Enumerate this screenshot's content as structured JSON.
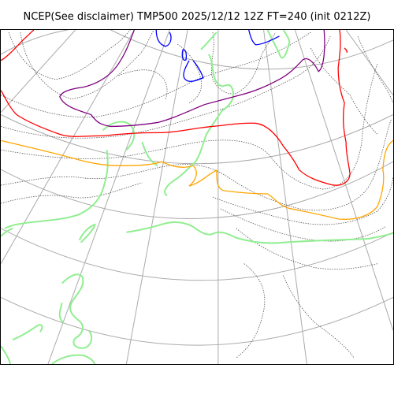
{
  "map": {
    "title": "NCEP(See disclaimer) TMP500 2025/12/12 12Z FT=240 (init 0212Z)",
    "colors": {
      "graticule": "#aaaaaa",
      "height_contours": "#555555",
      "coastline": "#90ee90",
      "isotherm_orange": "#ffa500",
      "isotherm_red": "#ff0000",
      "isotherm_purple": "#800080",
      "isotherm_blue": "#0000ff"
    }
  }
}
